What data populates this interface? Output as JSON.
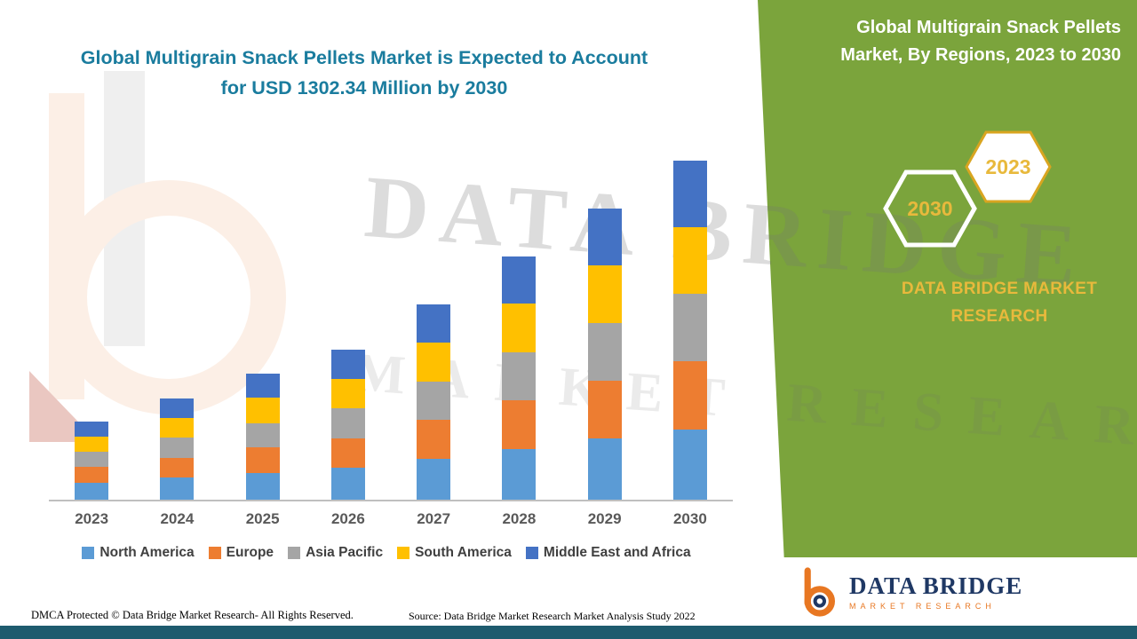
{
  "header": {
    "title_line1": "Global Multigrain Snack Pellets Market is Expected to Account",
    "title_line2": "for USD 1302.34 Million by 2030"
  },
  "right_panel": {
    "title": "Global Multigrain Snack Pellets Market, By Regions, 2023 to 2030",
    "hexagons": [
      {
        "year": "2030"
      },
      {
        "year": "2023"
      }
    ],
    "brand_line1": "DATA BRIDGE MARKET",
    "brand_line2": "RESEARCH"
  },
  "footer": {
    "dmca": "DMCA Protected © Data Bridge Market Research- All Rights Reserved.",
    "source": "Source: Data Bridge Market Research Market Analysis Study 2022"
  },
  "logo": {
    "name": "DATA BRIDGE",
    "tagline": "MARKET RESEARCH"
  },
  "watermark": {
    "line1": "DATA BRIDGE",
    "line2": "MARKET RESEARCH"
  },
  "colors": {
    "title_teal": "#1A7C9E",
    "panel_green": "#7BA43C",
    "accent_gold": "#E8B93C",
    "bottom_strip_teal": "#1E5B6E"
  },
  "chart_data": {
    "type": "bar",
    "stacked": true,
    "title": "Global Multigrain Snack Pellets Market, By Regions, 2023 to 2030",
    "unit": "USD Million",
    "categories": [
      "2023",
      "2024",
      "2025",
      "2026",
      "2027",
      "2028",
      "2029",
      "2030"
    ],
    "series": [
      {
        "name": "North America",
        "color": "#5B9BD5",
        "values": [
          66,
          84,
          103,
          122,
          158,
          196,
          234,
          270
        ]
      },
      {
        "name": "Europe",
        "color": "#ED7D31",
        "values": [
          60,
          78,
          97,
          115,
          150,
          187,
          224,
          262
        ]
      },
      {
        "name": "Asia Pacific",
        "color": "#A5A5A5",
        "values": [
          58,
          76,
          95,
          113,
          147,
          184,
          220,
          258
        ]
      },
      {
        "name": "South America",
        "color": "#FFC000",
        "values": [
          59,
          77,
          96,
          114,
          149,
          185,
          222,
          256
        ]
      },
      {
        "name": "Middle East and Africa",
        "color": "#4472C4",
        "values": [
          57,
          75,
          93,
          112,
          146,
          182,
          218,
          256.34
        ]
      }
    ],
    "totals_estimated": [
      300,
      390,
      484,
      576,
      750,
      934,
      1118,
      1302.34
    ],
    "annotation": "USD 1302.34 Million by 2030",
    "xlabel": "",
    "ylabel": "",
    "ylim": [
      0,
      1400
    ],
    "grid": false,
    "y_axis_visible": false,
    "legend_position": "bottom"
  }
}
